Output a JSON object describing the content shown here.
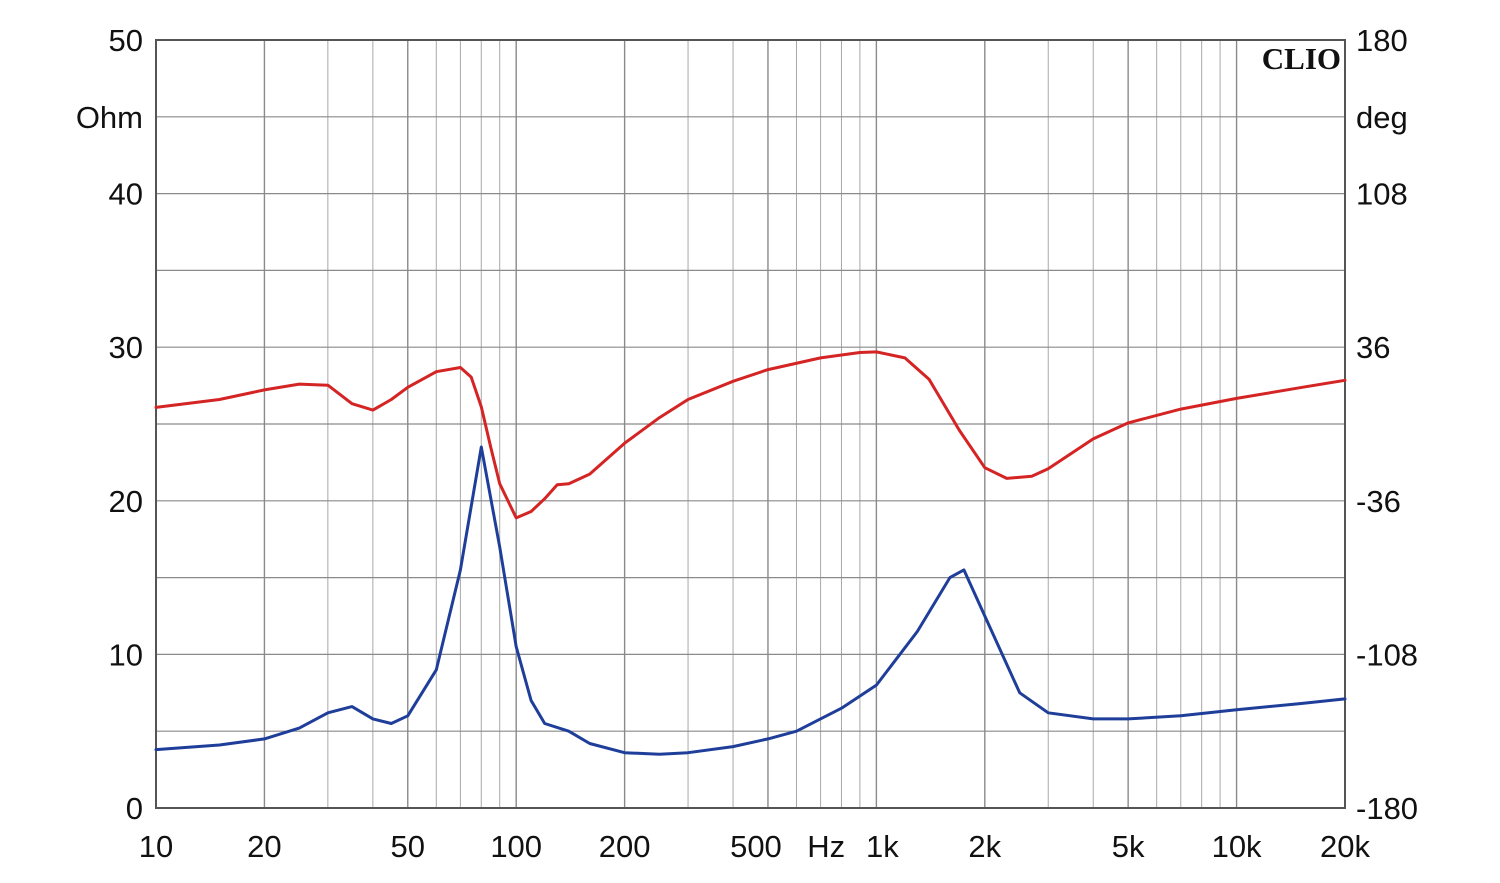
{
  "chart_data": {
    "type": "line",
    "brand": "CLIO",
    "x_scale": "log",
    "xlim": [
      10,
      20000
    ],
    "x_ticks": [
      {
        "value": 10,
        "label": "10"
      },
      {
        "value": 20,
        "label": "20"
      },
      {
        "value": 50,
        "label": "50"
      },
      {
        "value": 100,
        "label": "100"
      },
      {
        "value": 200,
        "label": "200"
      },
      {
        "value": 500,
        "label": "500"
      },
      {
        "value": 1000,
        "label": "1k"
      },
      {
        "value": 2000,
        "label": "2k"
      },
      {
        "value": 5000,
        "label": "5k"
      },
      {
        "value": 10000,
        "label": "10k"
      },
      {
        "value": 20000,
        "label": "20k"
      }
    ],
    "x_unit_label": "Hz",
    "y_left": {
      "unit": "Ohm",
      "lim": [
        0,
        50
      ],
      "ticks": [
        {
          "value": 0,
          "label": "0"
        },
        {
          "value": 10,
          "label": "10"
        },
        {
          "value": 20,
          "label": "20"
        },
        {
          "value": 30,
          "label": "30"
        },
        {
          "value": 40,
          "label": "40"
        },
        {
          "value": 50,
          "label": "50"
        }
      ]
    },
    "y_right": {
      "unit": "deg",
      "lim": [
        -180,
        180
      ],
      "ticks": [
        {
          "value": -180,
          "label": "-180"
        },
        {
          "value": -108,
          "label": "-108"
        },
        {
          "value": -36,
          "label": "-36"
        },
        {
          "value": 36,
          "label": "36"
        },
        {
          "value": 108,
          "label": "108"
        },
        {
          "value": 180,
          "label": "180"
        }
      ]
    },
    "grid": true,
    "series": [
      {
        "color": "#1f3e9a",
        "axis": "left",
        "x": [
          10,
          15,
          20,
          25,
          30,
          35,
          40,
          45,
          50,
          60,
          70,
          80,
          90,
          100,
          110,
          120,
          140,
          160,
          200,
          250,
          300,
          400,
          500,
          600,
          800,
          1000,
          1300,
          1600,
          1750,
          2000,
          2500,
          3000,
          4000,
          5000,
          7000,
          10000,
          15000,
          20000
        ],
        "y": [
          3.8,
          4.1,
          4.5,
          5.2,
          6.2,
          6.6,
          5.8,
          5.5,
          6.0,
          9.0,
          15.5,
          23.5,
          17.0,
          10.5,
          7.0,
          5.5,
          5.0,
          4.2,
          3.6,
          3.5,
          3.6,
          4.0,
          4.5,
          5.0,
          6.5,
          8.0,
          11.5,
          15.0,
          15.5,
          12.5,
          7.5,
          6.2,
          5.8,
          5.8,
          6.0,
          6.4,
          6.8,
          7.1
        ]
      },
      {
        "color": "#d42424",
        "axis": "right",
        "x": [
          10,
          15,
          20,
          25,
          30,
          35,
          40,
          45,
          50,
          60,
          70,
          75,
          80,
          85,
          90,
          100,
          110,
          120,
          130,
          140,
          160,
          200,
          250,
          300,
          400,
          500,
          700,
          900,
          1000,
          1200,
          1400,
          1700,
          2000,
          2300,
          2700,
          3000,
          4000,
          5000,
          7000,
          10000,
          15000,
          20000
        ],
        "y": [
          7.8,
          11.5,
          16.0,
          18.7,
          18.2,
          9.5,
          6.5,
          11.5,
          17.2,
          24.5,
          26.5,
          22.0,
          8.0,
          -11.0,
          -28.0,
          -44.0,
          -41.0,
          -35.0,
          -28.5,
          -28.0,
          -23.5,
          -9.0,
          3.0,
          11.5,
          20.0,
          25.5,
          31.0,
          33.5,
          33.8,
          31.0,
          21.0,
          -3.0,
          -20.5,
          -25.5,
          -24.5,
          -21.0,
          -7.0,
          0.5,
          7.0,
          12.0,
          17.0,
          20.5
        ]
      }
    ]
  }
}
